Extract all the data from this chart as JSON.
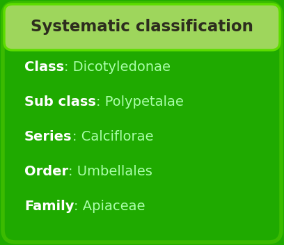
{
  "title": "Systematic classification",
  "title_bg_color": "#9ed65c",
  "title_text_color": "#2d2d1e",
  "body_bg_color": "#1faa00",
  "border_color": "#5ddd00",
  "outer_border_color": "#3bbb00",
  "rows": [
    {
      "bold": "Class",
      "normal": ": Dicotyledonae"
    },
    {
      "bold": "Sub class",
      "normal": ": Polypetalae"
    },
    {
      "bold": "Series",
      "normal": ": Calciflorae"
    },
    {
      "bold": "Order",
      "normal": ": Umbellales"
    },
    {
      "bold": "Family",
      "normal": ": Apiaceae"
    }
  ],
  "bold_color": "#ffffff",
  "normal_color": "#aaffaa",
  "fig_width": 4.08,
  "fig_height": 3.52,
  "dpi": 100
}
